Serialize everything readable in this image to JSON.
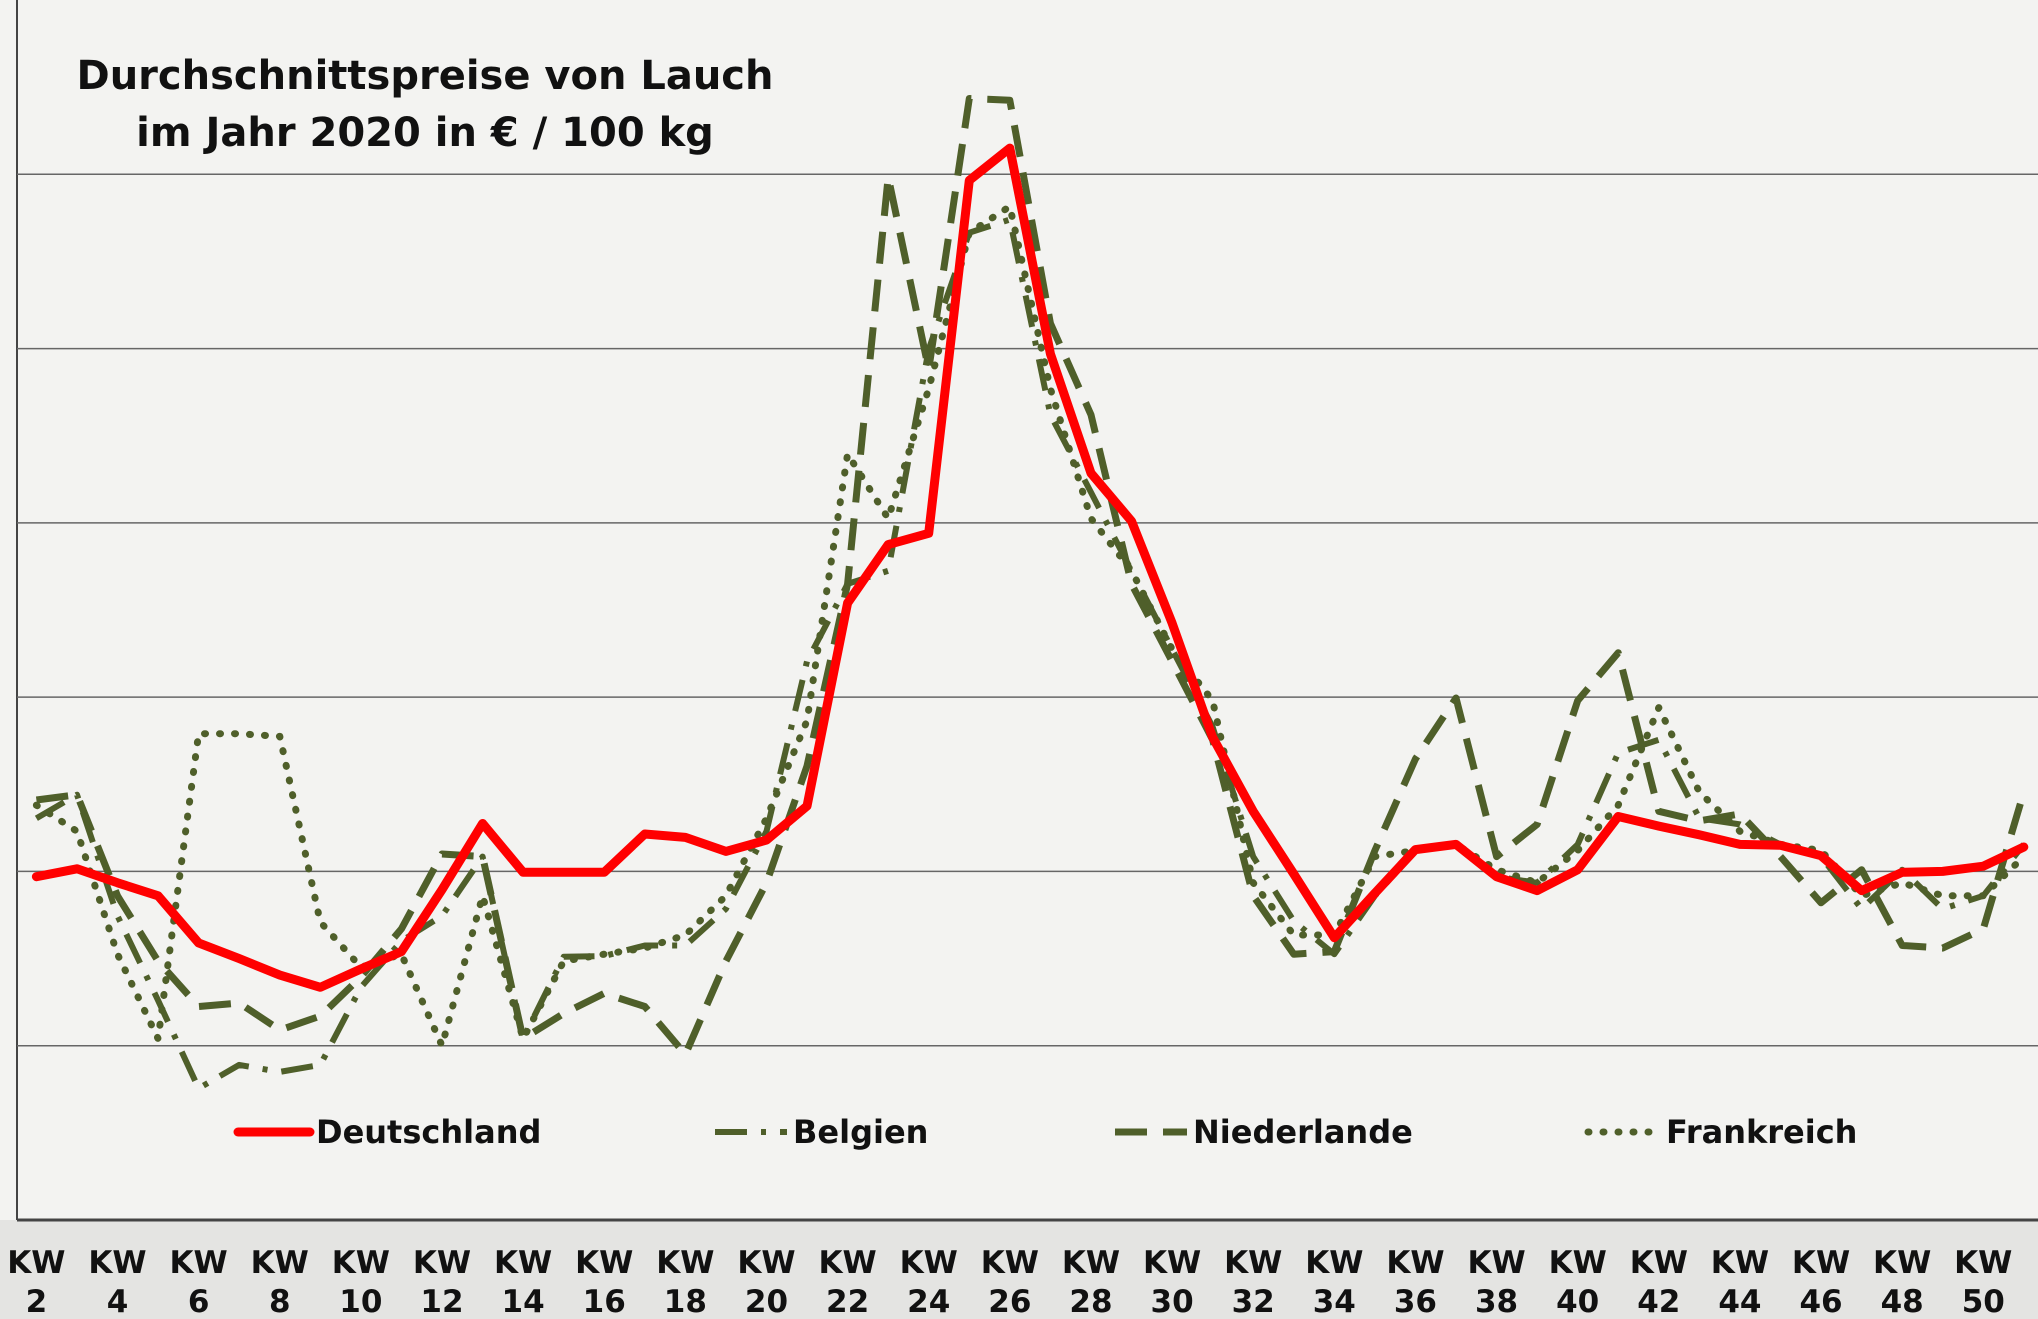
{
  "chart_data": {
    "type": "line",
    "title": "Durchschnittspreise von Lauch\nim Jahr 2020 in € / 100 kg",
    "categories": [
      "KW\n2",
      null,
      "KW\n4",
      null,
      "KW\n6",
      null,
      "KW\n8",
      null,
      "KW\n10",
      null,
      "KW\n12",
      null,
      "KW\n14",
      null,
      "KW\n16",
      null,
      "KW\n18",
      null,
      "KW\n20",
      null,
      "KW\n22",
      null,
      "KW\n24",
      null,
      "KW\n26",
      null,
      "KW\n28",
      null,
      "KW\n30",
      null,
      "KW\n32",
      null,
      "KW\n34",
      null,
      "KW\n36",
      null,
      "KW\n38",
      null,
      "KW\n40",
      null,
      "KW\n42",
      null,
      "KW\n44",
      null,
      "KW\n46",
      null,
      "KW\n48",
      null,
      "KW\n50",
      null
    ],
    "series": [
      {
        "name": "Deutschland",
        "color": "#ff0000",
        "style": "solid",
        "values": [
          39.4,
          40.3,
          38.7,
          37.2,
          31.8,
          30.0,
          28.1,
          26.7,
          28.8,
          30.8,
          37.9,
          45.5,
          39.9,
          39.9,
          39.9,
          44.3,
          43.9,
          42.3,
          43.6,
          47.5,
          70.8,
          77.5,
          78.8,
          119.3,
          123.0,
          99.4,
          85.7,
          80.2,
          68.5,
          55.4,
          46.9,
          39.7,
          32.4,
          37.5,
          42.5,
          43.1,
          39.4,
          37.8,
          40.2,
          46.3,
          45.2,
          44.2,
          43.1,
          43.0,
          41.8,
          37.8,
          39.9,
          40.0,
          40.6,
          42.8
        ]
      },
      {
        "name": "Belgien",
        "color": "#4f5f2a",
        "style": "dashdot",
        "values": [
          46.1,
          48.8,
          34.9,
          25.2,
          15.1,
          17.8,
          17.0,
          17.8,
          26.7,
          32.0,
          34.9,
          41.7,
          20.8,
          30.2,
          30.3,
          31.5,
          31.5,
          35.7,
          44.6,
          64.1,
          73.0,
          74.5,
          99.9,
          113.3,
          114.8,
          92.4,
          83.5,
          74.5,
          65.5,
          56.6,
          41.7,
          34.3,
          30.5,
          37.2,
          42.4,
          43.1,
          39.4,
          38.7,
          43.1,
          53.6,
          55.1,
          46.1,
          45.4,
          43.1,
          41.7,
          35.7,
          40.2,
          35.7,
          37.2,
          43.1
        ]
      },
      {
        "name": "Niederlande",
        "color": "#4f5f2a",
        "style": "dashed",
        "values": [
          48.2,
          48.8,
          37.2,
          29.7,
          24.5,
          24.9,
          21.8,
          23.4,
          27.9,
          33.4,
          42.0,
          41.7,
          20.8,
          23.7,
          26.0,
          24.5,
          19.0,
          29.7,
          38.7,
          52.1,
          73.0,
          119.7,
          97.6,
          128.7,
          128.5,
          102.9,
          92.4,
          73.0,
          64.1,
          55.1,
          37.2,
          30.5,
          30.8,
          42.4,
          52.9,
          59.9,
          41.7,
          45.4,
          59.6,
          65.1,
          46.9,
          45.8,
          46.6,
          41.7,
          36.4,
          40.2,
          31.5,
          31.2,
          33.4,
          49.1
        ]
      },
      {
        "name": "Frankreich",
        "color": "#4f5f2a",
        "style": "dotted",
        "values": [
          47.6,
          44.6,
          30.5,
          20.8,
          55.8,
          55.8,
          55.5,
          34.2,
          29.0,
          30.5,
          20.0,
          37.2,
          20.8,
          29.7,
          30.5,
          31.2,
          32.7,
          37.2,
          46.1,
          57.3,
          87.9,
          80.5,
          95.4,
          113.3,
          116.3,
          95.4,
          80.5,
          74.5,
          65.5,
          59.6,
          38.7,
          32.7,
          32.7,
          41.7,
          42.4,
          43.1,
          40.2,
          38.7,
          42.4,
          47.6,
          58.8,
          49.1,
          44.6,
          43.1,
          42.4,
          37.2,
          38.7,
          37.2,
          37.2,
          41.7
        ]
      }
    ],
    "ylim": [
      0,
      140
    ],
    "yticks": [
      0,
      20,
      40,
      60,
      80,
      100,
      120
    ],
    "grid": true
  }
}
